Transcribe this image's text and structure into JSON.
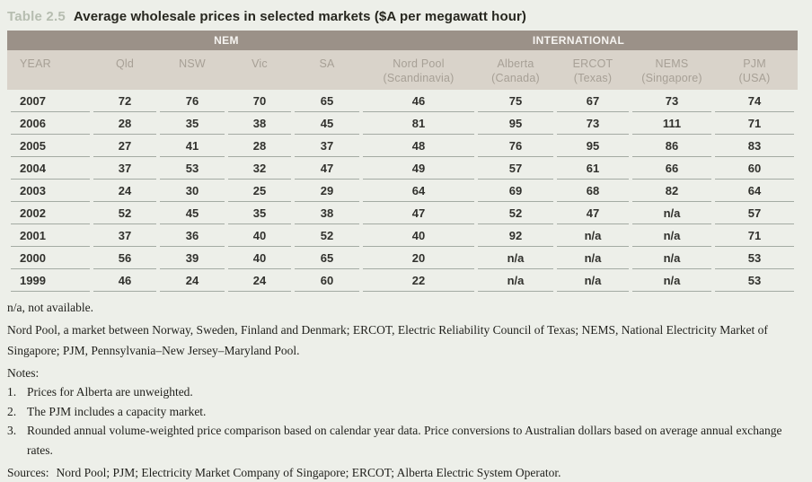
{
  "title": {
    "label": "Table 2.5",
    "text": "Average wholesale prices in selected markets ($A per megawatt hour)"
  },
  "colors": {
    "page-bg": "#edefe9",
    "band-dark": "#9b9188",
    "band-text": "#f6f4f1",
    "subhead-bg": "#d9d3ca",
    "subhead-text": "#a7a096",
    "row-line": "#a4aba3",
    "data-text": "#31312d",
    "title-label": "#b6bdb0",
    "title-text": "#27271f",
    "footnote-text": "#1f1f1b"
  },
  "table": {
    "groups": [
      {
        "label": "NEM",
        "span": 4
      },
      {
        "label": "INTERNATIONAL",
        "span": 5
      }
    ],
    "columns": [
      {
        "line1": "YEAR",
        "line2": ""
      },
      {
        "line1": "Qld",
        "line2": ""
      },
      {
        "line1": "NSW",
        "line2": ""
      },
      {
        "line1": "Vic",
        "line2": ""
      },
      {
        "line1": "SA",
        "line2": ""
      },
      {
        "line1": "Nord Pool",
        "line2": "(Scandinavia)"
      },
      {
        "line1": "Alberta",
        "line2": "(Canada)"
      },
      {
        "line1": "ERCOT",
        "line2": "(Texas)"
      },
      {
        "line1": "NEMS",
        "line2": "(Singapore)"
      },
      {
        "line1": "PJM",
        "line2": "(USA)"
      }
    ],
    "rows": [
      {
        "year": "2007",
        "values": [
          "72",
          "76",
          "70",
          "65",
          "46",
          "75",
          "67",
          "73",
          "74"
        ]
      },
      {
        "year": "2006",
        "values": [
          "28",
          "35",
          "38",
          "45",
          "81",
          "95",
          "73",
          "111",
          "71"
        ]
      },
      {
        "year": "2005",
        "values": [
          "27",
          "41",
          "28",
          "37",
          "48",
          "76",
          "95",
          "86",
          "83"
        ]
      },
      {
        "year": "2004",
        "values": [
          "37",
          "53",
          "32",
          "47",
          "49",
          "57",
          "61",
          "66",
          "60"
        ]
      },
      {
        "year": "2003",
        "values": [
          "24",
          "30",
          "25",
          "29",
          "64",
          "69",
          "68",
          "82",
          "64"
        ]
      },
      {
        "year": "2002",
        "values": [
          "52",
          "45",
          "35",
          "38",
          "47",
          "52",
          "47",
          "n/a",
          "57"
        ]
      },
      {
        "year": "2001",
        "values": [
          "37",
          "36",
          "40",
          "52",
          "40",
          "92",
          "n/a",
          "n/a",
          "71"
        ]
      },
      {
        "year": "2000",
        "values": [
          "56",
          "39",
          "40",
          "65",
          "20",
          "n/a",
          "n/a",
          "n/a",
          "53"
        ]
      },
      {
        "year": "1999",
        "values": [
          "46",
          "24",
          "24",
          "60",
          "22",
          "n/a",
          "n/a",
          "n/a",
          "53"
        ]
      }
    ]
  },
  "footnotes": {
    "na_note": "n/a, not available.",
    "abbreviations": "Nord Pool, a market between Norway, Sweden, Finland and Denmark; ERCOT, Electric Reliability Council of Texas; NEMS, National Electricity Market of Singapore; PJM, Pennsylvania–New Jersey–Maryland Pool.",
    "notes_label": "Notes:",
    "notes": [
      {
        "num": "1.",
        "text": "Prices for Alberta are unweighted."
      },
      {
        "num": "2.",
        "text": "The PJM includes a capacity market."
      },
      {
        "num": "3.",
        "text": "Rounded annual volume-weighted price comparison based on calendar year data. Price conversions to Australian dollars based on average annual exchange rates."
      }
    ],
    "sources_label": "Sources:",
    "sources_text": "Nord Pool; PJM; Electricity Market Company of Singapore; ERCOT; Alberta Electric System Operator."
  }
}
